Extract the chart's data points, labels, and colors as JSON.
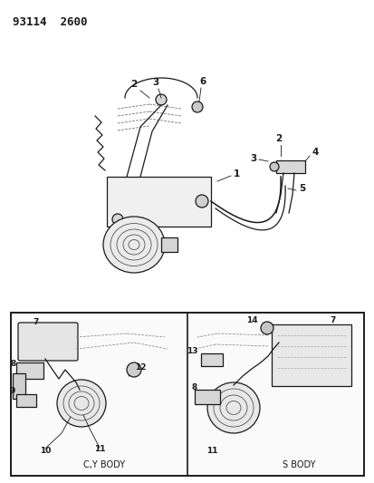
{
  "title": "93114  2600",
  "bg_color": "#ffffff",
  "fig_width": 4.14,
  "fig_height": 5.33,
  "dpi": 100,
  "cy_body_label": "C,Y BODY",
  "s_body_label": "S BODY"
}
